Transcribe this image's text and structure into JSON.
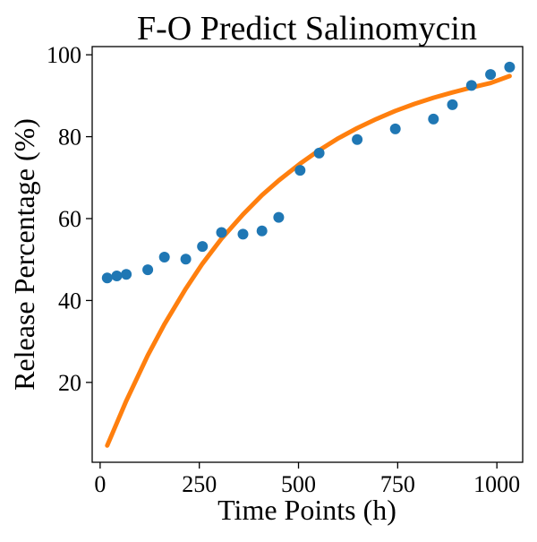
{
  "chart_data": {
    "type": "scatter",
    "title": "F-O Predict Salinomycin",
    "xlabel": "Time Points (h)",
    "ylabel": "Release Percentage (%)",
    "xlim": [
      -20,
      1065
    ],
    "ylim": [
      0.5,
      102
    ],
    "x_ticks": [
      0,
      250,
      500,
      750,
      1000
    ],
    "y_ticks": [
      20,
      40,
      60,
      80,
      100
    ],
    "grid": false,
    "series": [
      {
        "kind": "scatter",
        "color": "#1f77b4",
        "points": [
          [
            18,
            45.5
          ],
          [
            42,
            46.0
          ],
          [
            66,
            46.4
          ],
          [
            120,
            47.5
          ],
          [
            162,
            50.6
          ],
          [
            216,
            50.1
          ],
          [
            258,
            53.2
          ],
          [
            306,
            56.6
          ],
          [
            360,
            56.2
          ],
          [
            408,
            57.0
          ],
          [
            450,
            60.3
          ],
          [
            504,
            71.8
          ],
          [
            552,
            76.0
          ],
          [
            648,
            79.3
          ],
          [
            744,
            81.9
          ],
          [
            840,
            84.3
          ],
          [
            888,
            87.8
          ],
          [
            936,
            92.5
          ],
          [
            984,
            95.2
          ],
          [
            1032,
            97.0
          ]
        ]
      },
      {
        "kind": "line",
        "color": "#ff7f0e",
        "points": [
          [
            18,
            4.6
          ],
          [
            66,
            15.5
          ],
          [
            120,
            26.6
          ],
          [
            162,
            34.2
          ],
          [
            216,
            42.9
          ],
          [
            258,
            49.0
          ],
          [
            306,
            55.1
          ],
          [
            360,
            61.0
          ],
          [
            408,
            65.7
          ],
          [
            450,
            69.3
          ],
          [
            504,
            73.4
          ],
          [
            552,
            76.7
          ],
          [
            600,
            79.6
          ],
          [
            648,
            82.1
          ],
          [
            696,
            84.3
          ],
          [
            744,
            86.3
          ],
          [
            792,
            88.0
          ],
          [
            840,
            89.5
          ],
          [
            888,
            90.8
          ],
          [
            936,
            92.0
          ],
          [
            984,
            93.1
          ],
          [
            1032,
            94.8
          ]
        ]
      }
    ]
  }
}
